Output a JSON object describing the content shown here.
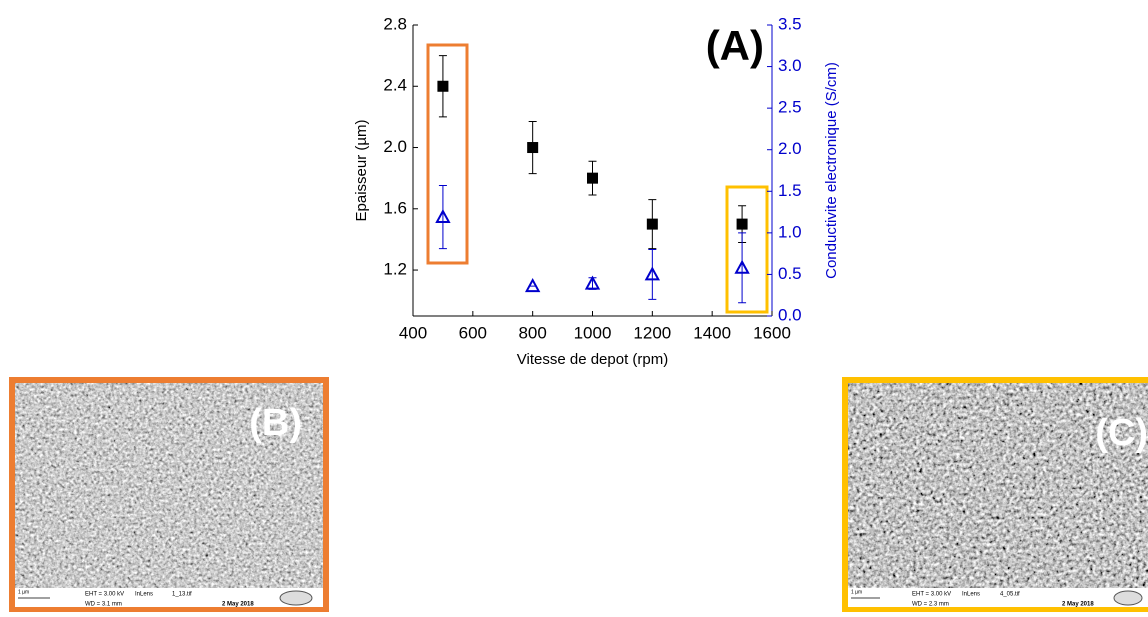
{
  "chart_data": {
    "type": "scatter",
    "xlabel": "Vitesse de depot (rpm)",
    "ylabel": "Epaisseur (µm)",
    "y2label": "Conductivite electronique (S/cm)",
    "annotation": "(A)",
    "xlim": [
      400,
      1600
    ],
    "xticks": [
      400,
      600,
      800,
      1000,
      1200,
      1400,
      1600
    ],
    "ylim": [
      0.9,
      2.8
    ],
    "yticks": [
      1.2,
      1.6,
      {
        "value": 2.0,
        "label": "2.0"
      },
      2.4,
      2.8
    ],
    "y2lim": [
      0,
      3.5
    ],
    "y2ticks": [
      {
        "value": 0,
        "label": "0.0"
      },
      0.5,
      {
        "value": 1,
        "label": "1.0"
      },
      1.5,
      {
        "value": 2,
        "label": "2.0"
      },
      2.5,
      {
        "value": 3,
        "label": "3.0"
      },
      3.5
    ],
    "grid": false,
    "series": [
      {
        "color": "#000000",
        "x": [
          500,
          800,
          1000,
          1200,
          1500
        ],
        "values": [
          2.4,
          2.0,
          1.8,
          1.5,
          1.5
        ],
        "errors": [
          0.2,
          0.17,
          0.11,
          0.16,
          0.12
        ]
      },
      {
        "color": "#0000cc",
        "axis": "y2",
        "x": [
          500,
          800,
          1000,
          1200,
          1500
        ],
        "values": [
          1.19,
          0.36,
          0.39,
          0.5,
          0.58
        ],
        "errors": [
          0.38,
          0,
          0.07,
          0.3,
          0.42
        ]
      }
    ]
  },
  "panels": [
    {
      "label": "(B)",
      "scale": "1 µm",
      "footer": [
        "EHT = 3.00 kV",
        "WD = 3.1 mm",
        "InLens",
        "1_13.tif",
        "2 May 2018"
      ]
    },
    {
      "label": "(C)",
      "scale": "1 µm",
      "footer": [
        "EHT = 3.00 kV",
        "WD = 2.3 mm",
        "InLens",
        "4_05.tif",
        "2 May 2018"
      ]
    }
  ]
}
